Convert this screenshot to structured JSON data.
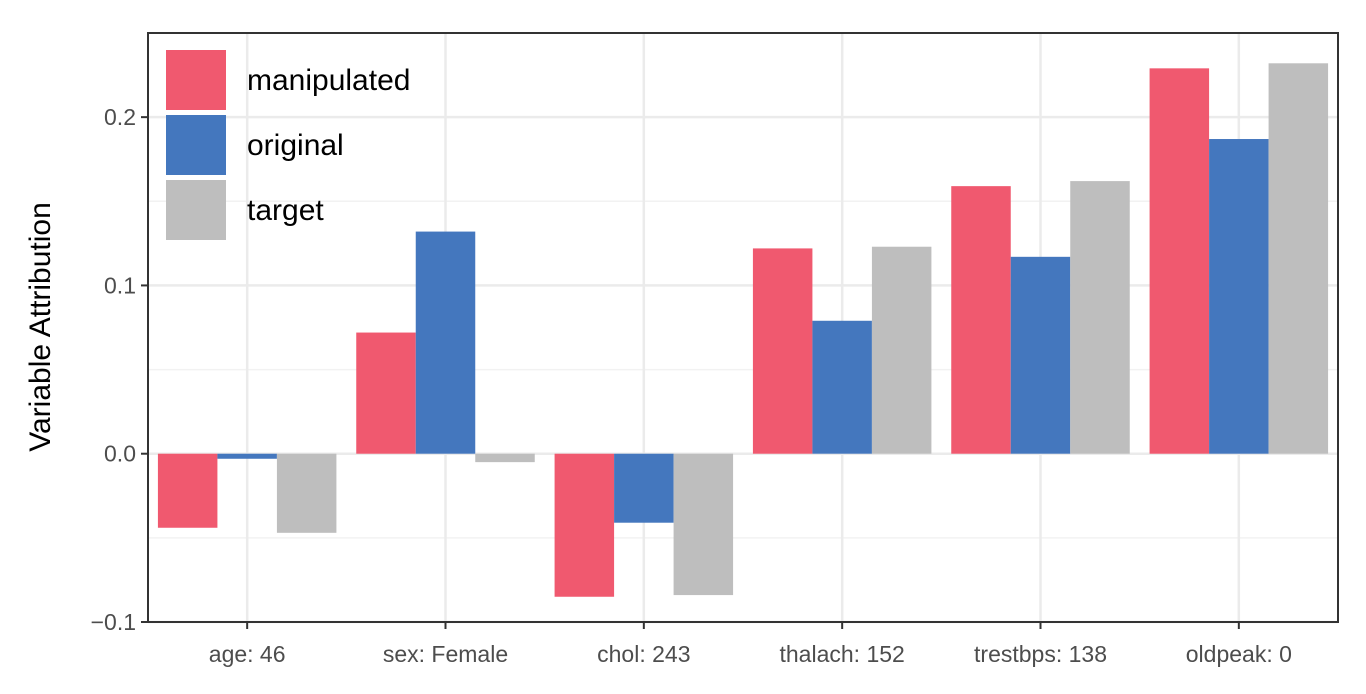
{
  "chart_data": {
    "type": "bar",
    "title": "",
    "xlabel": "",
    "ylabel": "Variable Attribution",
    "categories": [
      "age: 46",
      "sex: Female",
      "chol: 243",
      "thalach: 152",
      "trestbps: 138",
      "oldpeak: 0"
    ],
    "series": [
      {
        "name": "manipulated",
        "color": "#f0596f",
        "values": [
          -0.044,
          0.072,
          -0.085,
          0.122,
          0.159,
          0.229
        ]
      },
      {
        "name": "original",
        "color": "#4477be",
        "values": [
          -0.003,
          0.132,
          -0.041,
          0.079,
          0.117,
          0.187
        ]
      },
      {
        "name": "target",
        "color": "#bebebe",
        "values": [
          -0.047,
          -0.005,
          -0.084,
          0.123,
          0.162,
          0.232
        ]
      }
    ],
    "ylim": [
      -0.1,
      0.25
    ],
    "yticks": [
      -0.1,
      0.0,
      0.1,
      0.2
    ],
    "ytick_labels": [
      "−0.1",
      "0.0",
      "0.1",
      "0.2"
    ],
    "grid": true,
    "legend_position": "top-left"
  }
}
